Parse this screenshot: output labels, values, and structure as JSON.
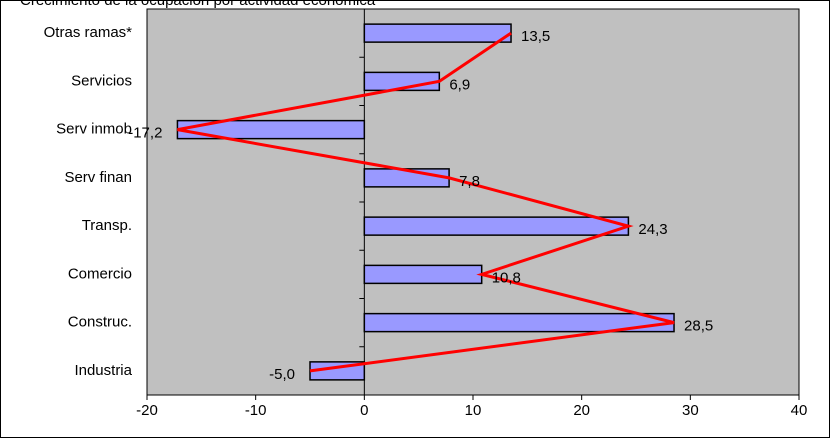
{
  "chart_data": {
    "type": "bar",
    "orientation": "horizontal",
    "title": "Crecimiento de la ocupación por actividad económica",
    "categories": [
      "Otras ramas*",
      "Servicios",
      "Serv inmob",
      "Serv finan",
      "Transp.",
      "Comercio",
      "Construc.",
      "Industria"
    ],
    "values": [
      13.5,
      6.9,
      -17.2,
      7.8,
      24.3,
      10.8,
      28.5,
      -5.0
    ],
    "value_labels": [
      "13,5",
      "6,9",
      "-17,2",
      "7,8",
      "24,3",
      "10,8",
      "28,5",
      "-5,0"
    ],
    "color": "#9999ff",
    "line_color": "#ff0000",
    "background": "#c0c0c0",
    "xlim": [
      -20,
      40
    ],
    "xticks": [
      -20,
      -10,
      0,
      10,
      20,
      30,
      40
    ]
  }
}
